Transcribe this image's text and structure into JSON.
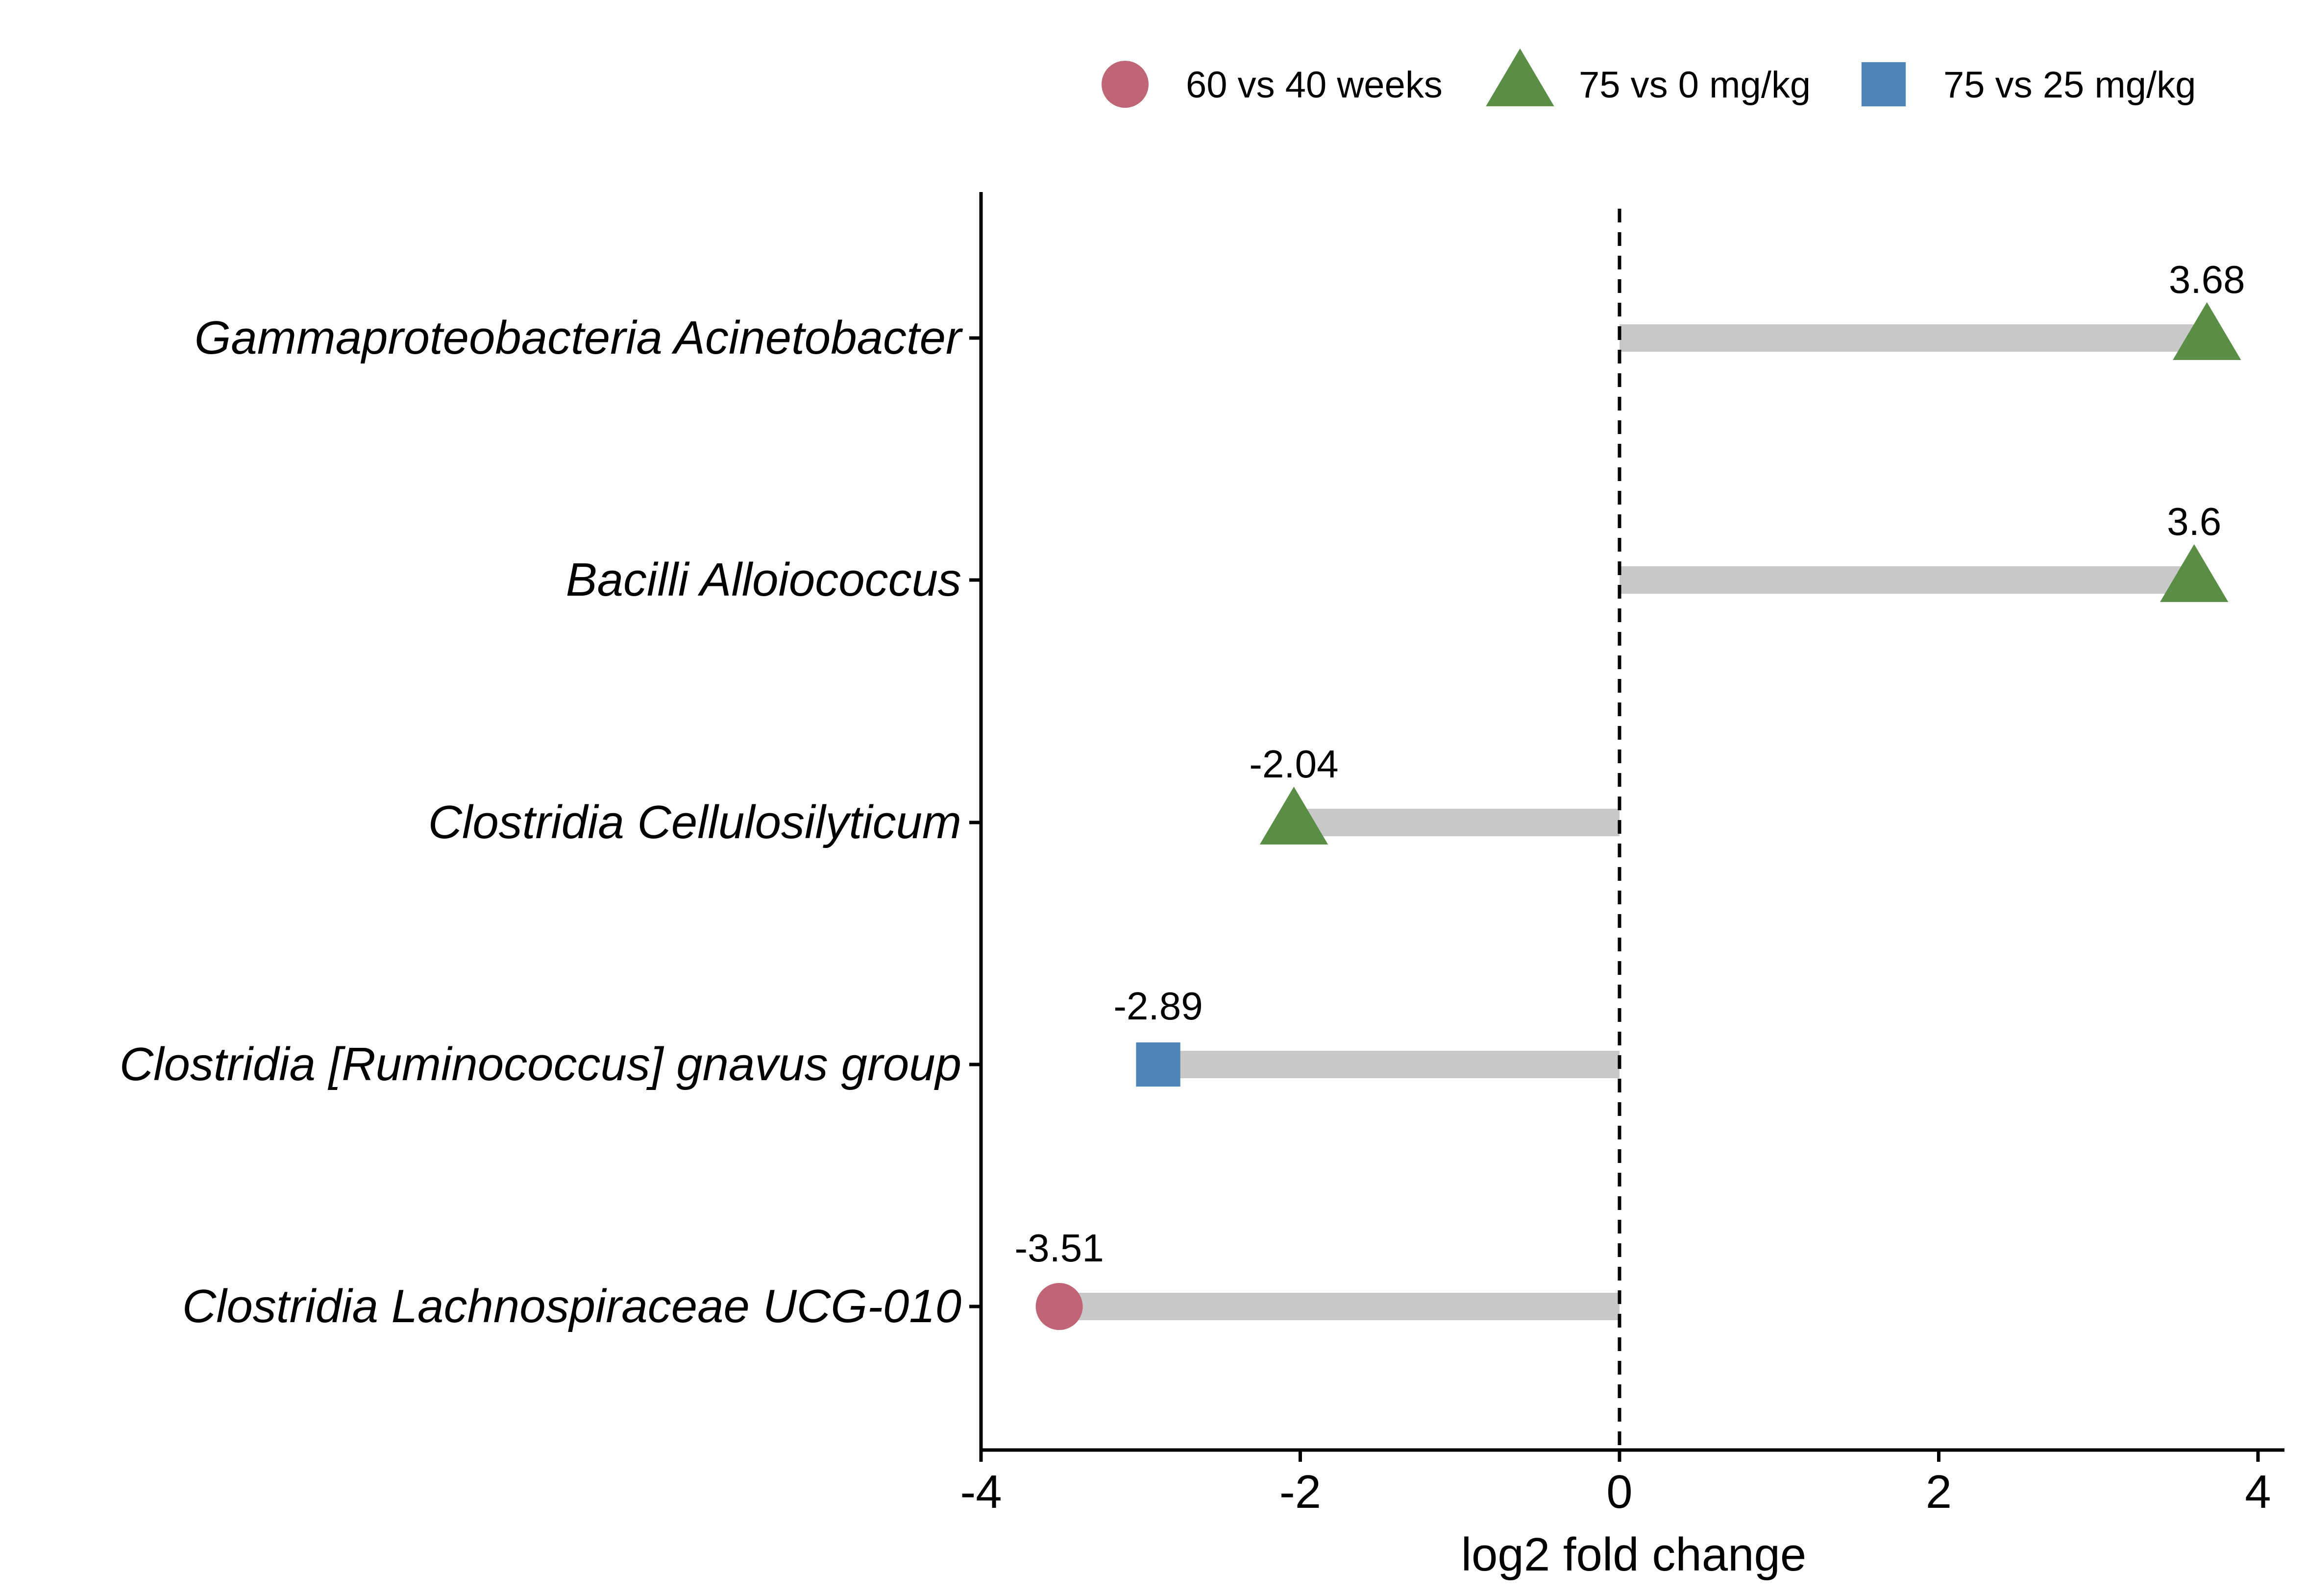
{
  "chart_data": {
    "type": "lollipop",
    "title": "",
    "xlabel": "log2 fold change",
    "ylabel": "",
    "xlim": [
      -4,
      4.2
    ],
    "x_ticks": [
      -4,
      -2,
      0,
      2,
      4
    ],
    "reference_line": 0,
    "grid": false,
    "legend": {
      "position": "top",
      "entries": [
        {
          "key": "60v40",
          "label": "60 vs 40 weeks",
          "shape": "circle",
          "color": "#C06575"
        },
        {
          "key": "75v0",
          "label": "75 vs 0 mg/kg",
          "shape": "triangle",
          "color": "#5A8E47"
        },
        {
          "key": "75v25",
          "label": "75 vs 25 mg/kg",
          "shape": "square",
          "color": "#4E84B8"
        }
      ]
    },
    "stem_color": "#C8C8C8",
    "points": [
      {
        "category": "Gammaproteobacteria Acinetobacter",
        "value": 3.68,
        "label": "3.68",
        "group": "75v0"
      },
      {
        "category": "Bacilli Alloiococcus",
        "value": 3.6,
        "label": "3.6",
        "group": "75v0"
      },
      {
        "category": "Clostridia Cellulosilyticum",
        "value": -2.04,
        "label": "-2.04",
        "group": "75v0"
      },
      {
        "category": "Clostridia [Ruminococcus] gnavus group",
        "value": -2.89,
        "label": "-2.89",
        "group": "75v25"
      },
      {
        "category": "Clostridia Lachnospiraceae UCG-010",
        "value": -3.51,
        "label": "-3.51",
        "group": "60v40"
      }
    ]
  }
}
